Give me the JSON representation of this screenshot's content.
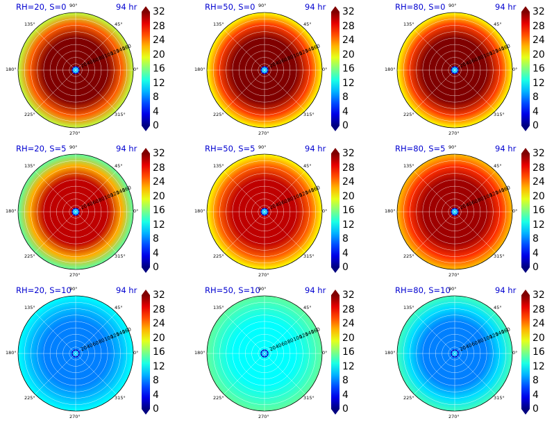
{
  "colors": {
    "title_color": "#0000d0",
    "colormap": "jet",
    "grid_color": "#ffffff"
  },
  "chart_data": [
    {
      "type": "heatmap",
      "projection": "polar",
      "title": "RH=20, S=0",
      "annotation": "94 hr",
      "radial_tick_labels": [
        "20",
        "40",
        "60",
        "80",
        "100",
        "120",
        "140",
        "160"
      ],
      "angular_tick_labels": [
        "90°",
        "45°",
        "0°",
        "315°",
        "270°",
        "225°",
        "180°",
        "135°"
      ],
      "colorbar": {
        "ticks": [
          "0",
          "4",
          "8",
          "12",
          "16",
          "20",
          "24",
          "28",
          "32"
        ],
        "range": [
          0,
          32
        ],
        "extend": "both"
      },
      "description_values": {
        "core_value": 32,
        "edge_value": 18
      }
    },
    {
      "type": "heatmap",
      "projection": "polar",
      "title": "RH=50, S=0",
      "annotation": "94 hr",
      "radial_tick_labels": [
        "20",
        "40",
        "60",
        "80",
        "100",
        "120",
        "140",
        "160"
      ],
      "angular_tick_labels": [
        "90°",
        "45°",
        "0°",
        "315°",
        "270°",
        "225°",
        "180°",
        "135°"
      ],
      "colorbar": {
        "ticks": [
          "0",
          "4",
          "8",
          "12",
          "16",
          "20",
          "24",
          "28",
          "32"
        ],
        "range": [
          0,
          32
        ],
        "extend": "both"
      },
      "description_values": {
        "core_value": 32,
        "edge_value": 20
      }
    },
    {
      "type": "heatmap",
      "projection": "polar",
      "title": "RH=80, S=0",
      "annotation": "94 hr",
      "radial_tick_labels": [
        "20",
        "40",
        "60",
        "80",
        "100",
        "120",
        "140",
        "160"
      ],
      "angular_tick_labels": [
        "90°",
        "45°",
        "0°",
        "315°",
        "270°",
        "225°",
        "180°",
        "135°"
      ],
      "colorbar": {
        "ticks": [
          "0",
          "4",
          "8",
          "12",
          "16",
          "20",
          "24",
          "28",
          "32"
        ],
        "range": [
          0,
          32
        ],
        "extend": "both"
      },
      "description_values": {
        "core_value": 32,
        "edge_value": 20
      }
    },
    {
      "type": "heatmap",
      "projection": "polar",
      "title": "RH=20, S=5",
      "annotation": "94 hr",
      "radial_tick_labels": [
        "20",
        "40",
        "60",
        "80",
        "100",
        "120",
        "140",
        "160"
      ],
      "angular_tick_labels": [
        "90°",
        "45°",
        "0°",
        "315°",
        "270°",
        "225°",
        "180°",
        "135°"
      ],
      "colorbar": {
        "ticks": [
          "0",
          "4",
          "8",
          "12",
          "16",
          "20",
          "24",
          "28",
          "32"
        ],
        "range": [
          0,
          32
        ],
        "extend": "both"
      },
      "description_values": {
        "core_value": 30,
        "edge_value": 15
      }
    },
    {
      "type": "heatmap",
      "projection": "polar",
      "title": "RH=50, S=5",
      "annotation": "94 hr",
      "radial_tick_labels": [
        "20",
        "40",
        "60",
        "80",
        "100",
        "120",
        "140",
        "160"
      ],
      "angular_tick_labels": [
        "90°",
        "45°",
        "0°",
        "315°",
        "270°",
        "225°",
        "180°",
        "135°"
      ],
      "colorbar": {
        "ticks": [
          "0",
          "4",
          "8",
          "12",
          "16",
          "20",
          "24",
          "28",
          "32"
        ],
        "range": [
          0,
          32
        ],
        "extend": "both"
      },
      "description_values": {
        "core_value": 30,
        "edge_value": 20
      }
    },
    {
      "type": "heatmap",
      "projection": "polar",
      "title": "RH=80, S=5",
      "annotation": "94 hr",
      "radial_tick_labels": [
        "20",
        "40",
        "60",
        "80",
        "100",
        "120",
        "140",
        "160"
      ],
      "angular_tick_labels": [
        "90°",
        "45°",
        "0°",
        "315°",
        "270°",
        "225°",
        "180°",
        "135°"
      ],
      "colorbar": {
        "ticks": [
          "0",
          "4",
          "8",
          "12",
          "16",
          "20",
          "24",
          "28",
          "32"
        ],
        "range": [
          0,
          32
        ],
        "extend": "both"
      },
      "description_values": {
        "core_value": 31,
        "edge_value": 22
      }
    },
    {
      "type": "heatmap",
      "projection": "polar",
      "title": "RH=20, S=10",
      "annotation": "94 hr",
      "radial_tick_labels": [
        "20",
        "40",
        "60",
        "80",
        "100",
        "120",
        "140",
        "160"
      ],
      "angular_tick_labels": [
        "90°",
        "45°",
        "0°",
        "315°",
        "270°",
        "225°",
        "180°",
        "135°"
      ],
      "colorbar": {
        "ticks": [
          "0",
          "4",
          "8",
          "12",
          "16",
          "20",
          "24",
          "28",
          "32"
        ],
        "range": [
          0,
          32
        ],
        "extend": "both"
      },
      "description_values": {
        "core_value": 8,
        "edge_value": 12
      }
    },
    {
      "type": "heatmap",
      "projection": "polar",
      "title": "RH=50, S=10",
      "annotation": "94 hr",
      "radial_tick_labels": [
        "20",
        "40",
        "60",
        "80",
        "100",
        "120",
        "140",
        "160"
      ],
      "angular_tick_labels": [
        "90°",
        "45°",
        "0°",
        "315°",
        "270°",
        "225°",
        "180°",
        "135°"
      ],
      "colorbar": {
        "ticks": [
          "0",
          "4",
          "8",
          "12",
          "16",
          "20",
          "24",
          "28",
          "32"
        ],
        "range": [
          0,
          32
        ],
        "extend": "both"
      },
      "description_values": {
        "core_value": 12,
        "edge_value": 15
      }
    },
    {
      "type": "heatmap",
      "projection": "polar",
      "title": "RH=80, S=10",
      "annotation": "94 hr",
      "radial_tick_labels": [
        "20",
        "40",
        "60",
        "80",
        "100",
        "120",
        "140",
        "160"
      ],
      "angular_tick_labels": [
        "90°",
        "45°",
        "0°",
        "315°",
        "270°",
        "225°",
        "180°",
        "135°"
      ],
      "colorbar": {
        "ticks": [
          "0",
          "4",
          "8",
          "12",
          "16",
          "20",
          "24",
          "28",
          "32"
        ],
        "range": [
          0,
          32
        ],
        "extend": "both"
      },
      "description_values": {
        "core_value": 8,
        "edge_value": 14
      }
    }
  ]
}
